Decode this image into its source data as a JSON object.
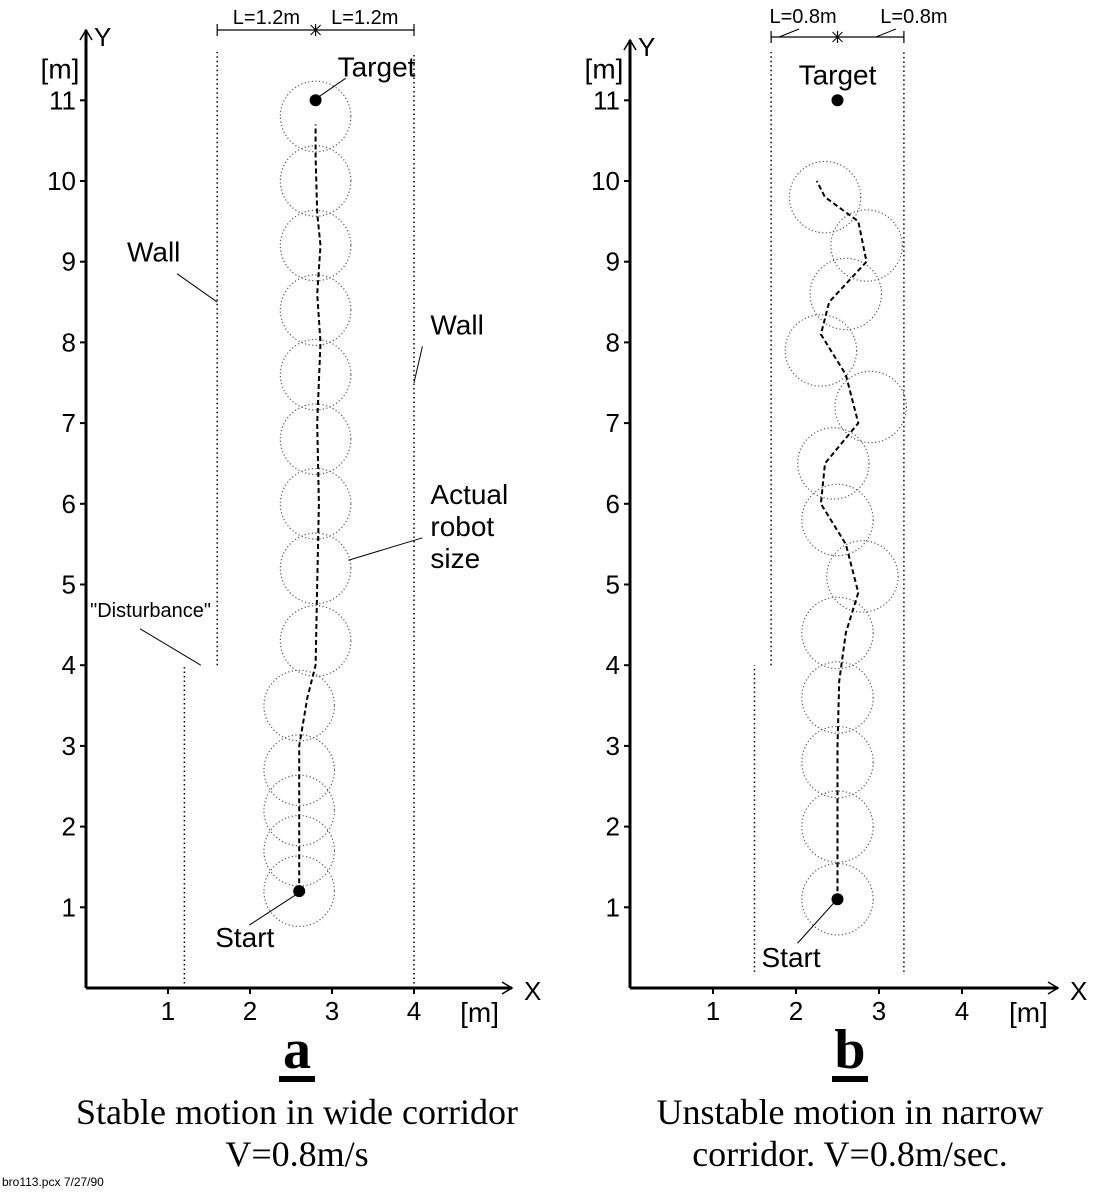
{
  "chart_data": [
    {
      "type": "line",
      "panel_letter": "a",
      "caption_lines": [
        "Stable motion in wide corridor",
        "V=0.8m/s"
      ],
      "x_axis": {
        "name": "X",
        "unit": "[m]",
        "ticks": [
          "1",
          "2",
          "3",
          "4"
        ],
        "range": [
          0,
          5
        ]
      },
      "y_axis": {
        "name": "Y",
        "unit": "[m]",
        "ticks": [
          "1",
          "2",
          "3",
          "4",
          "5",
          "6",
          "7",
          "8",
          "9",
          "10",
          "11"
        ],
        "range": [
          0,
          11.3
        ]
      },
      "dimension_labels": [
        "L=1.2m",
        "L=1.2m"
      ],
      "dimension_marks_x": [
        1.6,
        2.8,
        4.0
      ],
      "walls": [
        {
          "x": 1.6,
          "y": [
            4.0,
            11.6
          ]
        },
        {
          "x": 4.0,
          "y": [
            0.0,
            11.6
          ]
        },
        {
          "x": 1.2,
          "y": [
            0.0,
            4.0
          ]
        }
      ],
      "start": {
        "label": "Start",
        "x": 2.6,
        "y": 1.2
      },
      "target": {
        "label": "Target",
        "x": 2.8,
        "y": 11.0
      },
      "robot_radius": 0.43,
      "robot_positions": [
        [
          2.6,
          1.2
        ],
        [
          2.6,
          1.7
        ],
        [
          2.6,
          2.2
        ],
        [
          2.6,
          2.7
        ],
        [
          2.6,
          3.5
        ],
        [
          2.8,
          4.3
        ],
        [
          2.8,
          5.2
        ],
        [
          2.8,
          6.0
        ],
        [
          2.8,
          6.8
        ],
        [
          2.8,
          7.6
        ],
        [
          2.8,
          8.4
        ],
        [
          2.8,
          9.2
        ],
        [
          2.8,
          10.0
        ],
        [
          2.8,
          10.8
        ]
      ],
      "path": [
        [
          2.6,
          1.2
        ],
        [
          2.6,
          2.0
        ],
        [
          2.6,
          3.0
        ],
        [
          2.7,
          3.6
        ],
        [
          2.8,
          4.0
        ],
        [
          2.82,
          5.0
        ],
        [
          2.84,
          6.0
        ],
        [
          2.82,
          7.0
        ],
        [
          2.86,
          8.0
        ],
        [
          2.82,
          8.6
        ],
        [
          2.86,
          9.2
        ],
        [
          2.82,
          9.6
        ],
        [
          2.8,
          10.3
        ],
        [
          2.8,
          10.7
        ]
      ],
      "annotations": [
        {
          "text": "Wall",
          "x": 0.5,
          "y": 9.0,
          "tx": 1.6,
          "ty": 8.5
        },
        {
          "text": "Wall",
          "x": 4.2,
          "y": 8.1,
          "tx": 4.0,
          "ty": 7.5
        },
        {
          "text": "\"Disturbance\"",
          "x": 0.05,
          "y": 4.6,
          "tx": 1.4,
          "ty": 4.0
        },
        {
          "text": "Actual\nrobot\nsize",
          "x": 4.2,
          "y": 6.0,
          "tx": 3.2,
          "ty": 5.3
        }
      ]
    },
    {
      "type": "line",
      "panel_letter": "b",
      "caption_lines": [
        "Unstable motion in narrow",
        "corridor. V=0.8m/sec."
      ],
      "x_axis": {
        "name": "X",
        "unit": "[m]",
        "ticks": [
          "1",
          "2",
          "3",
          "4"
        ],
        "range": [
          0,
          5
        ]
      },
      "y_axis": {
        "name": "Y",
        "unit": "[m]",
        "ticks": [
          "1",
          "2",
          "3",
          "4",
          "5",
          "6",
          "7",
          "8",
          "9",
          "10",
          "11"
        ],
        "range": [
          0,
          11.3
        ]
      },
      "dimension_labels": [
        "L=0.8m",
        "L=0.8m"
      ],
      "dimension_marks_x": [
        1.7,
        2.5,
        3.3
      ],
      "walls": [
        {
          "x": 1.7,
          "y": [
            4.0,
            11.6
          ]
        },
        {
          "x": 3.3,
          "y": [
            0.2,
            11.6
          ]
        },
        {
          "x": 1.5,
          "y": [
            0.2,
            4.0
          ]
        }
      ],
      "start": {
        "label": "Start",
        "x": 2.5,
        "y": 1.1
      },
      "target": {
        "label": "Target",
        "x": 2.5,
        "y": 11.0
      },
      "robot_radius": 0.43,
      "robot_positions": [
        [
          2.5,
          1.1
        ],
        [
          2.5,
          2.0
        ],
        [
          2.5,
          2.8
        ],
        [
          2.5,
          3.6
        ],
        [
          2.5,
          4.4
        ],
        [
          2.8,
          5.1
        ],
        [
          2.5,
          5.8
        ],
        [
          2.45,
          6.5
        ],
        [
          2.9,
          7.2
        ],
        [
          2.3,
          7.9
        ],
        [
          2.6,
          8.6
        ],
        [
          2.85,
          9.2
        ],
        [
          2.35,
          9.8
        ]
      ],
      "path": [
        [
          2.5,
          1.1
        ],
        [
          2.5,
          2.0
        ],
        [
          2.5,
          3.0
        ],
        [
          2.52,
          3.8
        ],
        [
          2.6,
          4.4
        ],
        [
          2.75,
          4.9
        ],
        [
          2.6,
          5.5
        ],
        [
          2.3,
          6.0
        ],
        [
          2.35,
          6.5
        ],
        [
          2.75,
          7.0
        ],
        [
          2.6,
          7.6
        ],
        [
          2.3,
          8.1
        ],
        [
          2.4,
          8.5
        ],
        [
          2.85,
          9.0
        ],
        [
          2.75,
          9.5
        ],
        [
          2.35,
          9.8
        ],
        [
          2.25,
          10.0
        ]
      ],
      "annotations": []
    }
  ],
  "footer_text": "bro113.pcx 7/27/90"
}
